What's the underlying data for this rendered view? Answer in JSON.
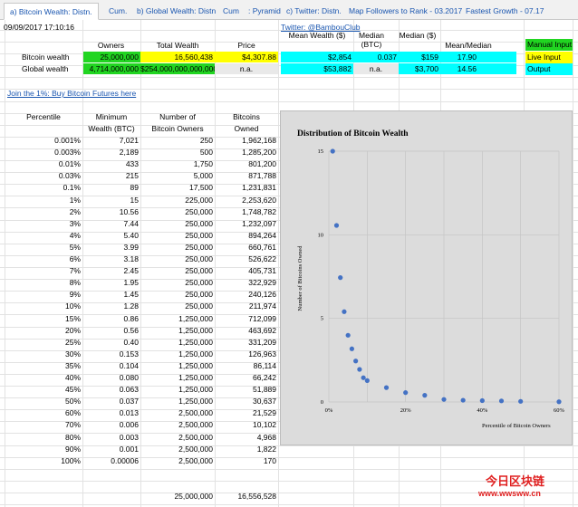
{
  "tabs": [
    {
      "label": "a) Bitcoin Wealth: Distn.",
      "active": true
    },
    {
      "label": "Cum."
    },
    {
      "label": "b) Global Wealth: Distn"
    },
    {
      "label": "Cum"
    },
    {
      "label": ": Pyramid"
    },
    {
      "label": "c) Twitter: Distn."
    },
    {
      "label": "Map Followers to Rank - 03.2017"
    },
    {
      "label": "Fastest Growth - 07.17"
    }
  ],
  "timestamp": "09/09/2017 17:10:16",
  "twitter_link": "Twitter: @BambouClub",
  "summary": {
    "headers": {
      "owners": "Owners",
      "total_wealth": "Total Wealth",
      "price": "Price",
      "mean_wealth": "Mean Wealth ($)",
      "median_btc": "Median (BTC)",
      "median_usd": "Median ($)",
      "mean_median": "Mean/Median"
    },
    "rows": [
      {
        "label": "Bitcoin wealth",
        "owners": "25,000,000",
        "total_wealth": "16,560,438",
        "price": "$4,307.88",
        "mean_wealth": "$2,854",
        "median_btc": "0.037",
        "median_usd": "$159",
        "mean_median": "17.90"
      },
      {
        "label": "Global wealth",
        "owners": "4,714,000,000",
        "total_wealth": "$254,000,000,000,000",
        "price": "n.a.",
        "mean_wealth": "$53,882",
        "median_btc": "n.a.",
        "median_usd": "$3,700",
        "mean_median": "14.56"
      }
    ]
  },
  "legend": {
    "manual_input": "Manual Input",
    "live_input": "Live Input",
    "output": "Output",
    "colors": {
      "manual": "#21d521",
      "live": "#ffff00",
      "output": "#00ffff"
    }
  },
  "join_link": "Join the 1%: Buy Bitcoin Futures here",
  "table": {
    "headers": {
      "percentile": "Percentile",
      "min_wealth_1": "Minimum",
      "min_wealth_2": "Wealth (BTC)",
      "num_owners_1": "Number of",
      "num_owners_2": "Bitcoin Owners",
      "btc_owned_1": "Bitcoins",
      "btc_owned_2": "Owned"
    },
    "rows": [
      {
        "p": "0.001%",
        "min": "7,021",
        "num": "250",
        "owned": "1,962,168"
      },
      {
        "p": "0.003%",
        "min": "2,189",
        "num": "500",
        "owned": "1,285,200"
      },
      {
        "p": "0.01%",
        "min": "433",
        "num": "1,750",
        "owned": "801,200"
      },
      {
        "p": "0.03%",
        "min": "215",
        "num": "5,000",
        "owned": "871,788"
      },
      {
        "p": "0.1%",
        "min": "89",
        "num": "17,500",
        "owned": "1,231,831"
      },
      {
        "p": "1%",
        "min": "15",
        "num": "225,000",
        "owned": "2,253,620"
      },
      {
        "p": "2%",
        "min": "10.56",
        "num": "250,000",
        "owned": "1,748,782"
      },
      {
        "p": "3%",
        "min": "7.44",
        "num": "250,000",
        "owned": "1,232,097"
      },
      {
        "p": "4%",
        "min": "5.40",
        "num": "250,000",
        "owned": "894,264"
      },
      {
        "p": "5%",
        "min": "3.99",
        "num": "250,000",
        "owned": "660,761"
      },
      {
        "p": "6%",
        "min": "3.18",
        "num": "250,000",
        "owned": "526,622"
      },
      {
        "p": "7%",
        "min": "2.45",
        "num": "250,000",
        "owned": "405,731"
      },
      {
        "p": "8%",
        "min": "1.95",
        "num": "250,000",
        "owned": "322,929"
      },
      {
        "p": "9%",
        "min": "1.45",
        "num": "250,000",
        "owned": "240,126"
      },
      {
        "p": "10%",
        "min": "1.28",
        "num": "250,000",
        "owned": "211,974"
      },
      {
        "p": "15%",
        "min": "0.86",
        "num": "1,250,000",
        "owned": "712,099"
      },
      {
        "p": "20%",
        "min": "0.56",
        "num": "1,250,000",
        "owned": "463,692"
      },
      {
        "p": "25%",
        "min": "0.40",
        "num": "1,250,000",
        "owned": "331,209"
      },
      {
        "p": "30%",
        "min": "0.153",
        "num": "1,250,000",
        "owned": "126,963"
      },
      {
        "p": "35%",
        "min": "0.104",
        "num": "1,250,000",
        "owned": "86,114"
      },
      {
        "p": "40%",
        "min": "0.080",
        "num": "1,250,000",
        "owned": "66,242"
      },
      {
        "p": "45%",
        "min": "0.063",
        "num": "1,250,000",
        "owned": "51,889"
      },
      {
        "p": "50%",
        "min": "0.037",
        "num": "1,250,000",
        "owned": "30,637"
      },
      {
        "p": "60%",
        "min": "0.013",
        "num": "2,500,000",
        "owned": "21,529"
      },
      {
        "p": "70%",
        "min": "0.006",
        "num": "2,500,000",
        "owned": "10,102"
      },
      {
        "p": "80%",
        "min": "0.003",
        "num": "2,500,000",
        "owned": "4,968"
      },
      {
        "p": "90%",
        "min": "0.001",
        "num": "2,500,000",
        "owned": "1,822"
      },
      {
        "p": "100%",
        "min": "0.00006",
        "num": "2,500,000",
        "owned": "170"
      }
    ],
    "totals": {
      "num": "25,000,000",
      "owned": "16,556,528"
    }
  },
  "chart_data": {
    "type": "scatter",
    "title": "Distribution of Bitcoin Wealth",
    "xlabel": "Percentile of Bitcoin Owners",
    "ylabel": "Number of Bitcoins Owned",
    "xlim": [
      0,
      60
    ],
    "ylim": [
      0,
      15
    ],
    "x_ticks": [
      "0%",
      "20%",
      "40%",
      "60%"
    ],
    "y_ticks": [
      "0",
      "5",
      "10",
      "15"
    ],
    "grid": true,
    "legend": "none",
    "color": "#4472c4",
    "points": [
      {
        "x": 1,
        "y": 15.0
      },
      {
        "x": 2,
        "y": 10.56
      },
      {
        "x": 3,
        "y": 7.44
      },
      {
        "x": 4,
        "y": 5.4
      },
      {
        "x": 5,
        "y": 3.99
      },
      {
        "x": 6,
        "y": 3.18
      },
      {
        "x": 7,
        "y": 2.45
      },
      {
        "x": 8,
        "y": 1.95
      },
      {
        "x": 9,
        "y": 1.45
      },
      {
        "x": 10,
        "y": 1.28
      },
      {
        "x": 15,
        "y": 0.86
      },
      {
        "x": 20,
        "y": 0.56
      },
      {
        "x": 25,
        "y": 0.4
      },
      {
        "x": 30,
        "y": 0.153
      },
      {
        "x": 35,
        "y": 0.104
      },
      {
        "x": 40,
        "y": 0.08
      },
      {
        "x": 45,
        "y": 0.063
      },
      {
        "x": 50,
        "y": 0.037
      },
      {
        "x": 60,
        "y": 0.013
      }
    ]
  },
  "watermark": {
    "line1": "今日区块链",
    "line2": "www.wwsww.cn"
  }
}
